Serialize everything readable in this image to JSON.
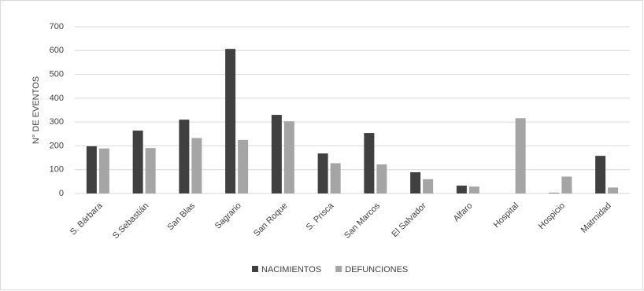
{
  "chart_data": {
    "type": "bar",
    "y_label": "N° DE EVENTOS",
    "categories": [
      "S. Bárbara",
      "S.Sebastián",
      "San Blas",
      "Sagrario",
      "San Roque",
      "S. Prisca",
      "San Marcos",
      "El Salvador",
      "Alfaro",
      "Hospital",
      "Hospicio",
      "Matrnidad"
    ],
    "series": [
      {
        "name": "NACIMIENTOS",
        "color": "#404040",
        "values": [
          198,
          264,
          310,
          607,
          330,
          168,
          254,
          89,
          33,
          0,
          2,
          158
        ]
      },
      {
        "name": "DEFUNCIONES",
        "color": "#a5a5a5",
        "values": [
          189,
          191,
          233,
          225,
          303,
          127,
          122,
          60,
          29,
          316,
          71,
          25
        ]
      }
    ],
    "ylim": [
      0,
      700
    ],
    "yticks": [
      0,
      100,
      200,
      300,
      400,
      500,
      600,
      700
    ],
    "grid": true,
    "legend": "bottom"
  }
}
